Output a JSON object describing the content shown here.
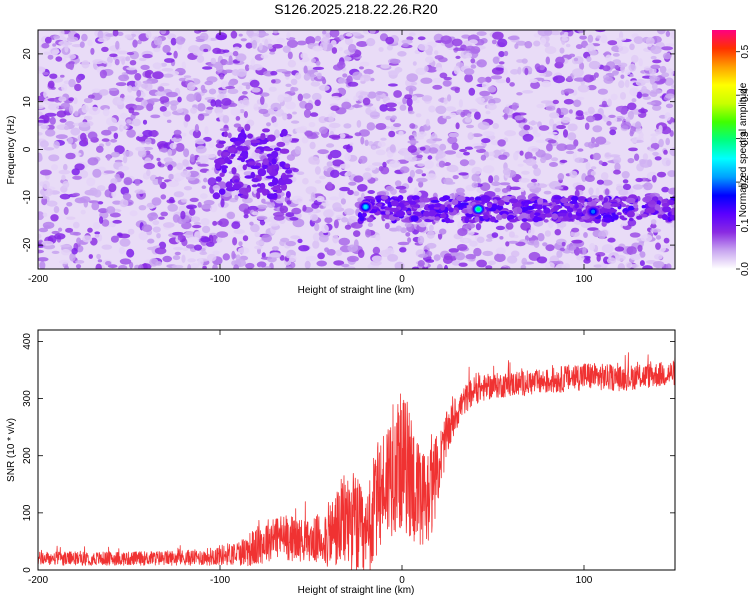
{
  "title": "S126.2025.218.22.26.R20",
  "colors": {
    "snr_line": "#f03232",
    "colormap": [
      "#ffffff",
      "#c9a6f0",
      "#8a2be2",
      "#5a00ff",
      "#0000ff",
      "#00a0ff",
      "#00ffff",
      "#00ff80",
      "#40ff00",
      "#c8ff00",
      "#ffff00",
      "#ffa000",
      "#ff3000",
      "#ff0080"
    ]
  },
  "chart_data": [
    {
      "type": "heatmap",
      "title": "S126.2025.218.22.26.R20",
      "xlabel": "Height of straight line (km)",
      "ylabel": "Frequency (Hz)",
      "xlim": [
        -200,
        150
      ],
      "ylim": [
        -25,
        25
      ],
      "x_ticks": [
        -200,
        -100,
        0,
        100
      ],
      "x_tick_labels": [
        "-200",
        "-100",
        "0",
        "100"
      ],
      "y_ticks": [
        -20,
        -10,
        0,
        10,
        20
      ],
      "y_tick_labels": [
        "-20",
        "-10",
        "0",
        "10",
        "20"
      ],
      "colorbar": {
        "label": "Normalized spectral amplitude",
        "range": [
          0,
          0.55
        ],
        "ticks": [
          0.0,
          0.1,
          0.2,
          0.3,
          0.4,
          0.5
        ],
        "tick_labels": [
          "0.0",
          "0.1",
          "0.2",
          "0.3",
          "0.4",
          "0.5"
        ]
      },
      "features": {
        "background_amplitude": [
          0.02,
          0.08
        ],
        "signal_band_frequency_hz": -12.5,
        "signal_band_start_km": -25,
        "cluster_center": {
          "x_km": -82,
          "y_hz": -3,
          "amplitude": 0.12
        },
        "peaks": [
          {
            "x_km": -20,
            "y_hz": -12,
            "amplitude": 0.24
          },
          {
            "x_km": 42,
            "y_hz": -12.5,
            "amplitude": 0.3
          },
          {
            "x_km": 105,
            "y_hz": -13,
            "amplitude": 0.2
          }
        ]
      }
    },
    {
      "type": "line",
      "xlabel": "Height of straight line (km)",
      "ylabel": "SNR (10 * v/v)",
      "xlim": [
        -200,
        150
      ],
      "ylim": [
        0,
        420
      ],
      "x_ticks": [
        -200,
        -100,
        0,
        100
      ],
      "x_tick_labels": [
        "-200",
        "-100",
        "0",
        "100"
      ],
      "y_ticks": [
        0,
        100,
        200,
        300,
        400
      ],
      "y_tick_labels": [
        "0",
        "100",
        "200",
        "300",
        "400"
      ],
      "series": [
        {
          "x": [
            -200,
            -150,
            -110,
            -90,
            -80,
            -70,
            -60,
            -50,
            -40,
            -30,
            -25,
            -20,
            -15,
            -10,
            -5,
            0,
            5,
            10,
            15,
            20,
            25,
            30,
            35,
            40,
            50,
            60,
            80,
            100,
            120,
            150
          ],
          "y": [
            20,
            20,
            22,
            30,
            40,
            60,
            55,
            50,
            60,
            90,
            80,
            40,
            110,
            150,
            180,
            190,
            170,
            110,
            130,
            180,
            240,
            275,
            300,
            315,
            322,
            325,
            330,
            340,
            335,
            345
          ],
          "noise": [
            12,
            12,
            14,
            22,
            35,
            40,
            40,
            35,
            60,
            90,
            90,
            80,
            100,
            100,
            120,
            120,
            120,
            100,
            90,
            60,
            40,
            30,
            25,
            25,
            22,
            22,
            22,
            25,
            22,
            22
          ]
        }
      ]
    }
  ]
}
